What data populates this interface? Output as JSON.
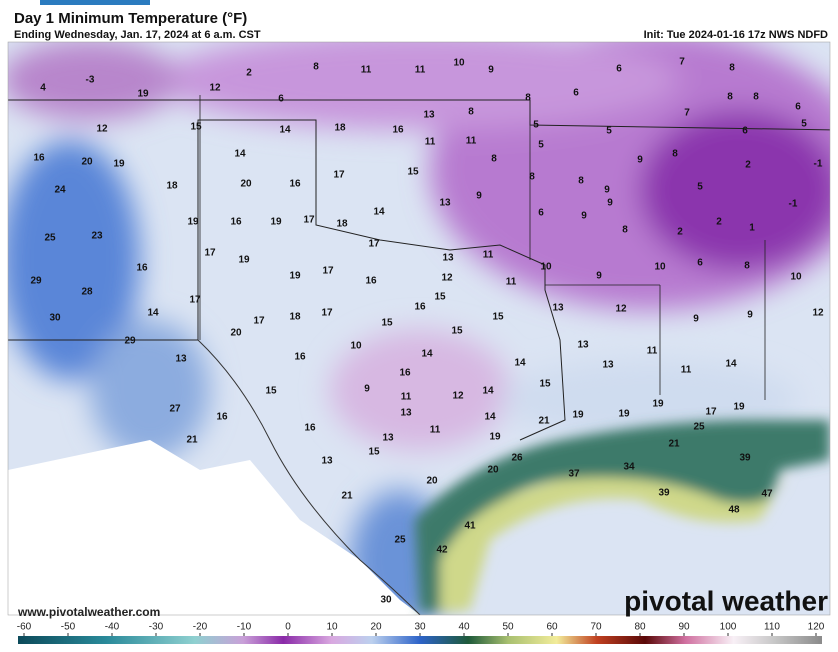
{
  "header": {
    "title": "Day 1 Minimum Temperature (°F)",
    "subtitle": "Ending Wednesday, Jan. 17, 2024 at 6 a.m. CST",
    "init": "Init: Tue 2024-01-16 17z NWS NDFD"
  },
  "map": {
    "labels": [
      -3,
      4,
      19,
      12,
      2,
      8,
      11,
      11,
      10,
      9,
      6,
      8,
      7,
      8,
      6,
      6,
      8,
      8,
      6,
      5,
      7,
      5,
      5,
      5,
      6,
      8,
      9,
      2,
      -1,
      -1,
      5,
      8,
      9,
      9,
      8,
      6,
      9,
      8,
      2,
      2,
      1,
      10,
      6,
      8,
      10,
      12,
      9,
      9,
      12,
      13,
      9,
      10,
      12,
      16,
      20,
      19,
      24,
      18,
      25,
      23,
      29,
      28,
      16,
      30,
      14,
      29,
      13,
      27,
      16,
      21,
      15,
      14,
      18,
      16,
      13,
      8,
      11,
      11,
      8,
      14,
      20,
      16,
      17,
      15,
      13,
      9,
      14,
      19,
      16,
      19,
      17,
      18,
      17,
      17,
      19,
      19,
      17,
      13,
      11,
      12,
      11,
      16,
      15,
      17,
      17,
      18,
      17,
      16,
      15,
      15,
      20,
      10,
      15,
      16,
      14,
      14,
      15,
      9,
      11,
      16,
      13,
      12,
      14,
      15,
      14,
      11,
      16,
      13,
      15,
      19,
      20,
      21,
      13,
      26,
      21,
      20,
      25,
      41,
      42,
      30,
      13,
      13,
      11,
      11,
      14,
      19,
      19,
      19,
      17,
      19,
      25,
      21,
      37,
      34,
      39,
      39,
      47,
      48
    ]
  },
  "footer": {
    "website": "www.pivotalweather.com",
    "brand": "pivotal weather"
  },
  "colorbar": {
    "ticks": [
      -60,
      -50,
      -40,
      -30,
      -20,
      -10,
      0,
      10,
      20,
      30,
      40,
      50,
      60,
      70,
      80,
      90,
      100,
      110,
      120
    ]
  }
}
